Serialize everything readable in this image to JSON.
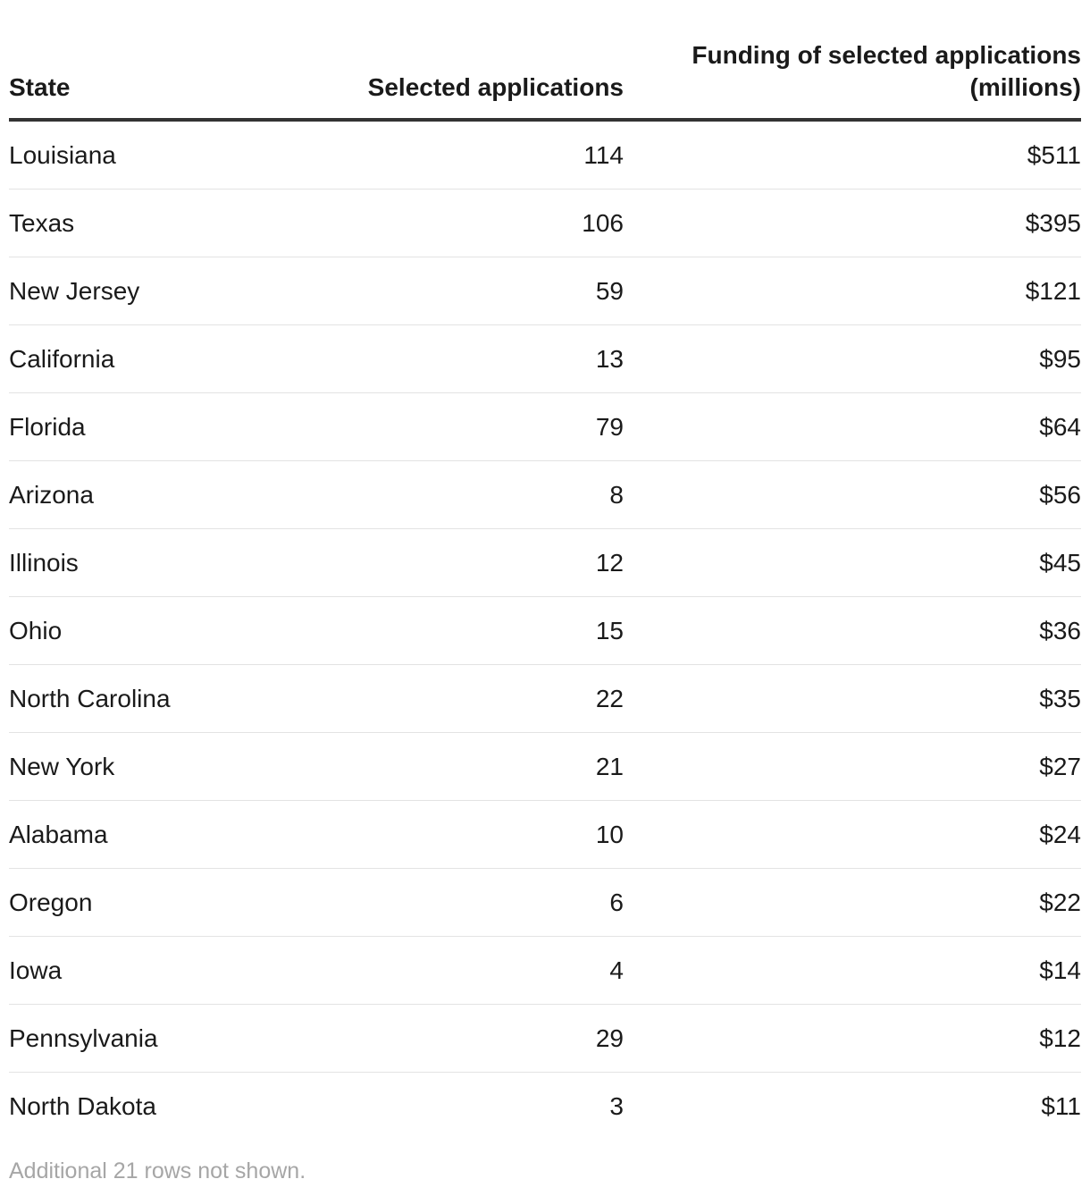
{
  "chart_data": {
    "type": "table",
    "columns": [
      "State",
      "Selected applications",
      "Funding of selected applications (millions)"
    ],
    "rows": [
      {
        "state": "Louisiana",
        "apps": "114",
        "funding": "$511"
      },
      {
        "state": "Texas",
        "apps": "106",
        "funding": "$395"
      },
      {
        "state": "New Jersey",
        "apps": "59",
        "funding": "$121"
      },
      {
        "state": "California",
        "apps": "13",
        "funding": "$95"
      },
      {
        "state": "Florida",
        "apps": "79",
        "funding": "$64"
      },
      {
        "state": "Arizona",
        "apps": "8",
        "funding": "$56"
      },
      {
        "state": "Illinois",
        "apps": "12",
        "funding": "$45"
      },
      {
        "state": "Ohio",
        "apps": "15",
        "funding": "$36"
      },
      {
        "state": "North Carolina",
        "apps": "22",
        "funding": "$35"
      },
      {
        "state": "New York",
        "apps": "21",
        "funding": "$27"
      },
      {
        "state": "Alabama",
        "apps": "10",
        "funding": "$24"
      },
      {
        "state": "Oregon",
        "apps": "6",
        "funding": "$22"
      },
      {
        "state": "Iowa",
        "apps": "4",
        "funding": "$14"
      },
      {
        "state": "Pennsylvania",
        "apps": "29",
        "funding": "$12"
      },
      {
        "state": "North Dakota",
        "apps": "3",
        "funding": "$11"
      }
    ],
    "note": "Additional 21 rows not shown."
  }
}
